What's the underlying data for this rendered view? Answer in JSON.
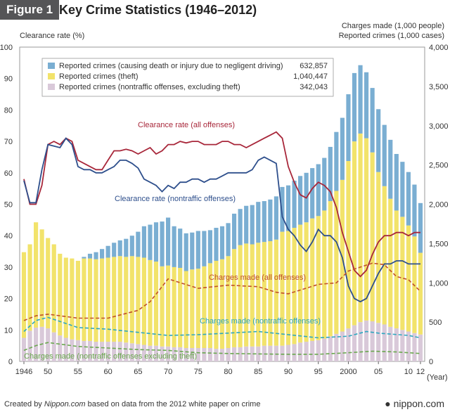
{
  "figure": {
    "badge": "Figure 1",
    "title": "Key Crime Statistics (1946–2012)"
  },
  "footer": {
    "credit_prefix": "Created by ",
    "credit_site": "Nippon.com",
    "credit_suffix": " based on data from the 2012 white paper on crime",
    "brand": "nippon.com"
  },
  "colors": {
    "traffic": "#7aaed2",
    "theft": "#f2e36b",
    "nontraffic": "#d9c9d9",
    "clearance_all": "#a8273a",
    "clearance_nontraffic": "#2e4f8c",
    "charges_all": "#c0502a",
    "charges_nontraffic": "#2ea7c0",
    "charges_nontraffic_excl_theft": "#6aa84f"
  },
  "chart_data": {
    "type": "bar+line",
    "title": "Key Crime Statistics (1946–2012)",
    "y_left": {
      "label": "Clearance rate (%)",
      "min": 0,
      "max": 100,
      "ticks": [
        "0",
        "10",
        "20",
        "30",
        "40",
        "50",
        "60",
        "70",
        "80",
        "90",
        "100"
      ]
    },
    "y_right": {
      "label_line1": "Charges made (1,000 people)",
      "label_line2": "Reported crimes (1,000 cases)",
      "min": 0,
      "max": 4000,
      "ticks": [
        "0",
        "500",
        "1,000",
        "1,500",
        "2,000",
        "2,500",
        "3,000",
        "3,500",
        "4,000"
      ]
    },
    "x": {
      "unit": "(Year)",
      "min": 1946,
      "max": 2012,
      "ticks": [
        {
          "year": 1946,
          "label": "1946"
        },
        {
          "year": 1950,
          "label": "50"
        },
        {
          "year": 1955,
          "label": "55"
        },
        {
          "year": 1960,
          "label": "60"
        },
        {
          "year": 1965,
          "label": "65"
        },
        {
          "year": 1970,
          "label": "70"
        },
        {
          "year": 1975,
          "label": "75"
        },
        {
          "year": 1980,
          "label": "80"
        },
        {
          "year": 1985,
          "label": "85"
        },
        {
          "year": 1990,
          "label": "90"
        },
        {
          "year": 1995,
          "label": "95"
        },
        {
          "year": 2000,
          "label": "2000"
        },
        {
          "year": 2005,
          "label": "05"
        },
        {
          "year": 2010,
          "label": "10"
        },
        {
          "year": 2012,
          "label": "12"
        }
      ]
    },
    "legend": [
      {
        "key": "traffic",
        "label": "Reported crimes (causing death or injury due to negligent driving)",
        "value": "632,857"
      },
      {
        "key": "theft",
        "label": "Reported crimes (theft)",
        "value": "1,040,447"
      },
      {
        "key": "nontraffic",
        "label": "Reported crimes (nontraffic offenses, excluding theft)",
        "value": "342,043"
      }
    ],
    "bar_stack_order": [
      "nontraffic",
      "theft",
      "traffic"
    ],
    "bars": {
      "years": [
        1946,
        1947,
        1948,
        1949,
        1950,
        1951,
        1952,
        1953,
        1954,
        1955,
        1956,
        1957,
        1958,
        1959,
        1960,
        1961,
        1962,
        1963,
        1964,
        1965,
        1966,
        1967,
        1968,
        1969,
        1970,
        1971,
        1972,
        1973,
        1974,
        1975,
        1976,
        1977,
        1978,
        1979,
        1980,
        1981,
        1982,
        1983,
        1984,
        1985,
        1986,
        1987,
        1988,
        1989,
        1990,
        1991,
        1992,
        1993,
        1994,
        1995,
        1996,
        1997,
        1998,
        1999,
        2000,
        2001,
        2002,
        2003,
        2004,
        2005,
        2006,
        2007,
        2008,
        2009,
        2010,
        2011,
        2012
      ],
      "nontraffic": [
        300,
        390,
        430,
        440,
        420,
        370,
        330,
        300,
        280,
        270,
        260,
        260,
        250,
        250,
        250,
        250,
        250,
        240,
        230,
        220,
        210,
        200,
        200,
        190,
        190,
        180,
        180,
        170,
        170,
        170,
        170,
        170,
        160,
        160,
        170,
        180,
        180,
        190,
        190,
        190,
        200,
        200,
        200,
        200,
        210,
        220,
        240,
        250,
        260,
        270,
        290,
        320,
        350,
        380,
        420,
        460,
        500,
        520,
        510,
        490,
        470,
        440,
        420,
        400,
        380,
        360,
        342
      ],
      "theft": [
        1090,
        1100,
        1340,
        1240,
        1150,
        1120,
        1040,
        1020,
        1030,
        1010,
        1050,
        1050,
        1050,
        1060,
        1070,
        1080,
        1090,
        1090,
        1110,
        1110,
        1110,
        1090,
        1070,
        1020,
        1030,
        1020,
        1010,
        980,
        1000,
        1010,
        1040,
        1080,
        1120,
        1140,
        1170,
        1250,
        1300,
        1310,
        1300,
        1320,
        1320,
        1330,
        1350,
        1450,
        1450,
        1480,
        1500,
        1520,
        1560,
        1580,
        1630,
        1720,
        1820,
        1930,
        2130,
        2340,
        2400,
        2320,
        2150,
        1920,
        1760,
        1630,
        1500,
        1440,
        1350,
        1230,
        1040
      ],
      "traffic": [
        0,
        0,
        0,
        0,
        0,
        0,
        0,
        0,
        0,
        0,
        20,
        60,
        90,
        120,
        150,
        180,
        200,
        230,
        260,
        320,
        400,
        450,
        500,
        570,
        610,
        520,
        500,
        480,
        470,
        480,
        450,
        420,
        420,
        420,
        420,
        450,
        460,
        480,
        500,
        520,
        520,
        530,
        550,
        570,
        580,
        600,
        620,
        630,
        640,
        660,
        670,
        690,
        750,
        790,
        850,
        870,
        870,
        840,
        820,
        800,
        780,
        750,
        720,
        700,
        680,
        660,
        633
      ]
    },
    "lines": [
      {
        "key": "clearance_all",
        "label": "Clearance rate (all offenses)",
        "axis": "left",
        "style": "solid",
        "points": [
          [
            1946,
            58
          ],
          [
            1947,
            50
          ],
          [
            1948,
            50
          ],
          [
            1949,
            56
          ],
          [
            1950,
            69
          ],
          [
            1951,
            70
          ],
          [
            1952,
            69
          ],
          [
            1953,
            71
          ],
          [
            1954,
            70
          ],
          [
            1955,
            64
          ],
          [
            1956,
            63
          ],
          [
            1957,
            62
          ],
          [
            1958,
            61
          ],
          [
            1959,
            61
          ],
          [
            1960,
            64
          ],
          [
            1961,
            67
          ],
          [
            1962,
            67
          ],
          [
            1963,
            67.5
          ],
          [
            1964,
            67
          ],
          [
            1965,
            66
          ],
          [
            1966,
            67
          ],
          [
            1967,
            68
          ],
          [
            1968,
            66
          ],
          [
            1969,
            67
          ],
          [
            1970,
            69
          ],
          [
            1971,
            69
          ],
          [
            1972,
            70
          ],
          [
            1973,
            69.5
          ],
          [
            1974,
            70
          ],
          [
            1975,
            70
          ],
          [
            1976,
            69
          ],
          [
            1977,
            69
          ],
          [
            1978,
            69
          ],
          [
            1979,
            70
          ],
          [
            1980,
            70
          ],
          [
            1981,
            69
          ],
          [
            1982,
            69
          ],
          [
            1983,
            68
          ],
          [
            1984,
            69
          ],
          [
            1985,
            70
          ],
          [
            1986,
            71
          ],
          [
            1987,
            72
          ],
          [
            1988,
            73
          ],
          [
            1989,
            71
          ],
          [
            1990,
            62
          ],
          [
            1991,
            57
          ],
          [
            1992,
            53
          ],
          [
            1993,
            52
          ],
          [
            1994,
            55
          ],
          [
            1995,
            57
          ],
          [
            1996,
            56
          ],
          [
            1997,
            54
          ],
          [
            1998,
            49
          ],
          [
            1999,
            41
          ],
          [
            2000,
            35
          ],
          [
            2001,
            29
          ],
          [
            2002,
            27
          ],
          [
            2003,
            29
          ],
          [
            2004,
            34
          ],
          [
            2005,
            38
          ],
          [
            2006,
            40
          ],
          [
            2007,
            40
          ],
          [
            2008,
            41
          ],
          [
            2009,
            41
          ],
          [
            2010,
            40
          ],
          [
            2011,
            41
          ],
          [
            2012,
            41
          ]
        ]
      },
      {
        "key": "clearance_nontraffic",
        "label": "Clearance rate (nontraffic offenses)",
        "axis": "left",
        "style": "solid",
        "points": [
          [
            1946,
            57.5
          ],
          [
            1947,
            50.5
          ],
          [
            1948,
            50.5
          ],
          [
            1949,
            61
          ],
          [
            1950,
            69
          ],
          [
            1951,
            68.5
          ],
          [
            1952,
            68
          ],
          [
            1953,
            71
          ],
          [
            1954,
            69
          ],
          [
            1955,
            62
          ],
          [
            1956,
            61
          ],
          [
            1957,
            61
          ],
          [
            1958,
            60
          ],
          [
            1959,
            60
          ],
          [
            1960,
            61
          ],
          [
            1961,
            62
          ],
          [
            1962,
            64
          ],
          [
            1963,
            64
          ],
          [
            1964,
            63
          ],
          [
            1965,
            61.5
          ],
          [
            1966,
            58
          ],
          [
            1967,
            57
          ],
          [
            1968,
            56
          ],
          [
            1969,
            54
          ],
          [
            1970,
            56
          ],
          [
            1971,
            55
          ],
          [
            1972,
            57
          ],
          [
            1973,
            57
          ],
          [
            1974,
            58
          ],
          [
            1975,
            58
          ],
          [
            1976,
            57
          ],
          [
            1977,
            58
          ],
          [
            1978,
            58
          ],
          [
            1979,
            59
          ],
          [
            1980,
            60
          ],
          [
            1981,
            60
          ],
          [
            1982,
            60
          ],
          [
            1983,
            60
          ],
          [
            1984,
            61
          ],
          [
            1985,
            64
          ],
          [
            1986,
            65
          ],
          [
            1987,
            64
          ],
          [
            1988,
            63
          ],
          [
            1989,
            46
          ],
          [
            1990,
            42
          ],
          [
            1991,
            40
          ],
          [
            1992,
            37
          ],
          [
            1993,
            35
          ],
          [
            1994,
            38
          ],
          [
            1995,
            42
          ],
          [
            1996,
            40
          ],
          [
            1997,
            40
          ],
          [
            1998,
            38
          ],
          [
            1999,
            33
          ],
          [
            2000,
            24
          ],
          [
            2001,
            20
          ],
          [
            2002,
            19
          ],
          [
            2003,
            20
          ],
          [
            2004,
            24
          ],
          [
            2005,
            28
          ],
          [
            2006,
            31
          ],
          [
            2007,
            31
          ],
          [
            2008,
            32
          ],
          [
            2009,
            32
          ],
          [
            2010,
            31
          ],
          [
            2011,
            31
          ],
          [
            2012,
            31
          ]
        ]
      },
      {
        "key": "charges_all",
        "label": "Charges made (all offenses)",
        "axis": "right",
        "style": "dashed",
        "points": [
          [
            1946,
            520
          ],
          [
            1948,
            580
          ],
          [
            1950,
            600
          ],
          [
            1955,
            550
          ],
          [
            1960,
            550
          ],
          [
            1965,
            650
          ],
          [
            1967,
            760
          ],
          [
            1970,
            1050
          ],
          [
            1975,
            930
          ],
          [
            1980,
            970
          ],
          [
            1985,
            950
          ],
          [
            1988,
            880
          ],
          [
            1990,
            860
          ],
          [
            1995,
            980
          ],
          [
            1998,
            1000
          ],
          [
            2000,
            1150
          ],
          [
            2004,
            1250
          ],
          [
            2006,
            1230
          ],
          [
            2008,
            1080
          ],
          [
            2010,
            1040
          ],
          [
            2012,
            890
          ]
        ]
      },
      {
        "key": "charges_nontraffic",
        "label": "Charges made (nontraffic offenses)",
        "axis": "right",
        "style": "dashed",
        "points": [
          [
            1946,
            380
          ],
          [
            1948,
            520
          ],
          [
            1950,
            560
          ],
          [
            1955,
            430
          ],
          [
            1960,
            410
          ],
          [
            1965,
            370
          ],
          [
            1970,
            330
          ],
          [
            1975,
            340
          ],
          [
            1980,
            360
          ],
          [
            1985,
            380
          ],
          [
            1990,
            340
          ],
          [
            1995,
            300
          ],
          [
            2000,
            320
          ],
          [
            2003,
            380
          ],
          [
            2005,
            360
          ],
          [
            2010,
            330
          ],
          [
            2012,
            300
          ]
        ]
      },
      {
        "key": "charges_nontraffic_excl_theft",
        "label": "Charges made (nontraffic offenses excluding theft)",
        "axis": "right",
        "style": "dashed",
        "points": [
          [
            1946,
            140
          ],
          [
            1948,
            200
          ],
          [
            1950,
            240
          ],
          [
            1955,
            190
          ],
          [
            1960,
            170
          ],
          [
            1965,
            150
          ],
          [
            1970,
            140
          ],
          [
            1975,
            110
          ],
          [
            1980,
            100
          ],
          [
            1985,
            95
          ],
          [
            1990,
            90
          ],
          [
            1995,
            90
          ],
          [
            2000,
            110
          ],
          [
            2004,
            130
          ],
          [
            2008,
            120
          ],
          [
            2012,
            100
          ]
        ]
      }
    ]
  }
}
